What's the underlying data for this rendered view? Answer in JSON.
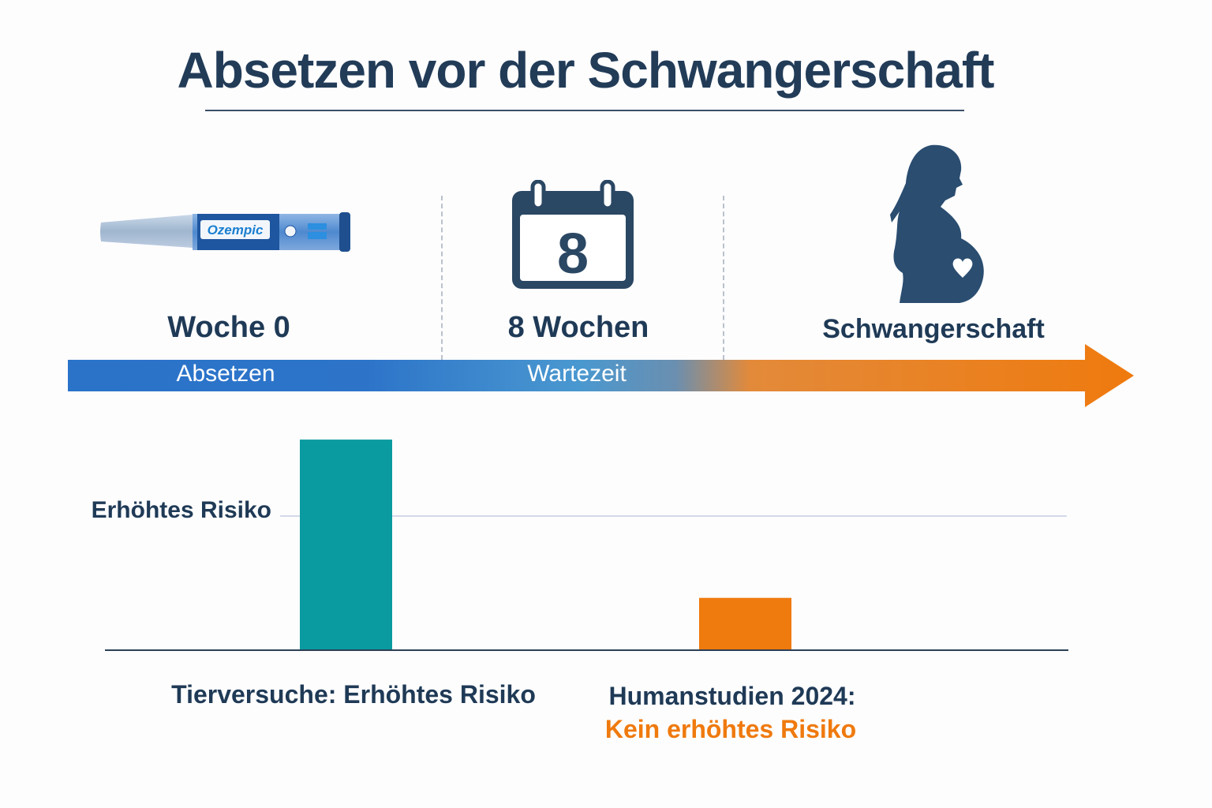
{
  "title": "Absetzen vor der Schwangerschaft",
  "timeline": {
    "steps": [
      {
        "label": "Woche 0",
        "bar_label": "Absetzen",
        "icon": "injection-pen-icon",
        "pen_brand": "Ozempic"
      },
      {
        "label": "8 Wochen",
        "bar_label": "Wartezeit",
        "icon": "calendar-icon",
        "calendar_number": "8"
      },
      {
        "label": "Schwangerschaft",
        "icon": "pregnant-woman-icon"
      }
    ],
    "colors": {
      "start": "#2a73c9",
      "middle": "#4a98d0",
      "end": "#ef7b12"
    }
  },
  "chart_data": {
    "type": "bar",
    "categories": [
      "Tierversuche: Erhöhtes Risiko",
      "Humanstudien 2024:"
    ],
    "category_sublabels": [
      "",
      "Kein erhöhtes Risiko"
    ],
    "values": [
      1.57,
      0.39
    ],
    "reference_line": {
      "label": "Erhöhtes Risiko",
      "value": 1.0
    },
    "colors": [
      "#0a9ba0",
      "#ef7a0e"
    ],
    "ylim": [
      0,
      1.6
    ],
    "grid": false
  }
}
